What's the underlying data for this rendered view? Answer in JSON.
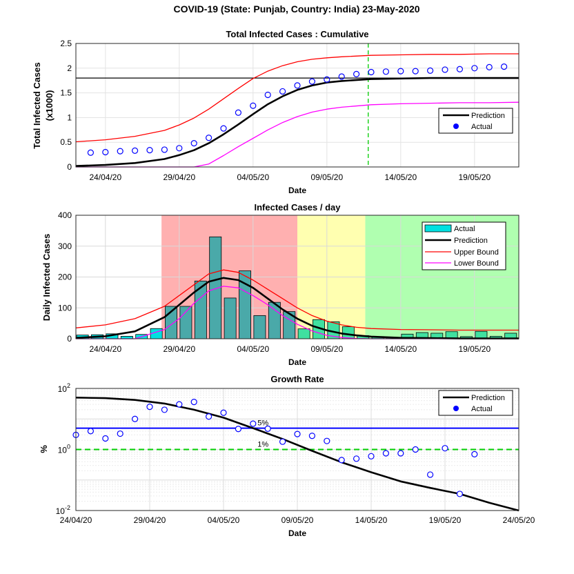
{
  "figure": {
    "title": "COVID-19 (State: Punjab, Country: India) 23-May-2020"
  },
  "colors": {
    "actual_marker": "#0000ff",
    "prediction": "#000000",
    "upper_bound": "#ff0000",
    "lower_bound": "#ff00ff",
    "cursor": "#00cc00",
    "bar": "#4aa9a9",
    "bar_green": "#40e0a0",
    "bar_cyan": "#00e0e0",
    "zone_red": "#ffb0b0",
    "zone_yellow": "#ffffb0",
    "zone_green": "#b0ffb0",
    "five_pct_line": "#0000ff",
    "one_pct_line": "#00cc00"
  },
  "chart_data": [
    {
      "type": "line",
      "title": "Total Infected Cases : Cumulative",
      "xlabel": "Date",
      "ylabel": "Total Infected Cases",
      "ylabel2": "(x1000)",
      "x_start": "2020-04-22",
      "xlim_days": [
        0,
        30
      ],
      "xticks": [
        {
          "day": 2,
          "label": "24/04/20"
        },
        {
          "day": 7,
          "label": "29/04/20"
        },
        {
          "day": 12,
          "label": "04/05/20"
        },
        {
          "day": 17,
          "label": "09/05/20"
        },
        {
          "day": 22,
          "label": "14/05/20"
        },
        {
          "day": 27,
          "label": "19/05/20"
        }
      ],
      "ylim": [
        0,
        2.5
      ],
      "yticks": [
        "0",
        "0.5",
        "1",
        "1.5",
        "2",
        "2.5"
      ],
      "grid": true,
      "final_size_line": 1.8,
      "cursor_day": 19.8,
      "legend": {
        "position": "lower-right",
        "entries": [
          "Prediction",
          "Actual"
        ]
      },
      "actual": {
        "x": [
          1,
          2,
          3,
          4,
          5,
          6,
          7,
          8,
          9,
          10,
          11,
          12,
          13,
          14,
          15,
          16,
          17,
          18,
          19,
          20,
          21,
          22,
          23,
          24,
          25,
          26,
          27,
          28,
          29
        ],
        "y": [
          0.29,
          0.3,
          0.32,
          0.33,
          0.34,
          0.35,
          0.38,
          0.48,
          0.59,
          0.78,
          1.1,
          1.24,
          1.46,
          1.53,
          1.65,
          1.73,
          1.77,
          1.83,
          1.88,
          1.92,
          1.93,
          1.94,
          1.94,
          1.95,
          1.97,
          1.98,
          2.0,
          2.02,
          2.03
        ]
      },
      "prediction": {
        "x": [
          0,
          2,
          4,
          6,
          7,
          8,
          9,
          10,
          11,
          12,
          13,
          14,
          15,
          16,
          17,
          18,
          20,
          22,
          24,
          26,
          28,
          30
        ],
        "y": [
          0.02,
          0.04,
          0.08,
          0.16,
          0.24,
          0.34,
          0.48,
          0.66,
          0.86,
          1.07,
          1.27,
          1.43,
          1.56,
          1.65,
          1.71,
          1.74,
          1.78,
          1.79,
          1.8,
          1.8,
          1.8,
          1.8
        ]
      },
      "upper_bound": {
        "x": [
          0,
          2,
          4,
          6,
          7,
          8,
          9,
          10,
          11,
          12,
          13,
          14,
          15,
          16,
          17,
          18,
          20,
          22,
          24,
          26,
          28,
          30
        ],
        "y": [
          0.51,
          0.55,
          0.62,
          0.74,
          0.85,
          0.99,
          1.17,
          1.38,
          1.59,
          1.79,
          1.94,
          2.05,
          2.13,
          2.18,
          2.21,
          2.23,
          2.26,
          2.27,
          2.28,
          2.28,
          2.29,
          2.29
        ]
      },
      "lower_bound": {
        "x": [
          0,
          5,
          8,
          9,
          10,
          11,
          12,
          13,
          14,
          15,
          16,
          17,
          18,
          20,
          22,
          24,
          26,
          28,
          30
        ],
        "y": [
          0.0,
          0.0,
          0.0,
          0.06,
          0.23,
          0.41,
          0.58,
          0.75,
          0.9,
          1.02,
          1.11,
          1.17,
          1.21,
          1.26,
          1.28,
          1.29,
          1.3,
          1.3,
          1.31
        ]
      }
    },
    {
      "type": "bar",
      "title": "Infected Cases / day",
      "xlabel": "Date",
      "ylabel": "Daily Infected Cases",
      "x_start": "2020-04-22",
      "xlim_days": [
        0,
        30
      ],
      "xticks": [
        {
          "day": 2,
          "label": "24/04/20"
        },
        {
          "day": 7,
          "label": "29/04/20"
        },
        {
          "day": 12,
          "label": "04/05/20"
        },
        {
          "day": 17,
          "label": "09/05/20"
        },
        {
          "day": 22,
          "label": "14/05/20"
        },
        {
          "day": 27,
          "label": "19/05/20"
        }
      ],
      "ylim": [
        0,
        400
      ],
      "yticks": [
        "0",
        "100",
        "200",
        "300",
        "400"
      ],
      "grid": true,
      "zones": [
        {
          "from": 5.8,
          "to": 15,
          "color": "red"
        },
        {
          "from": 15,
          "to": 19.6,
          "color": "yellow"
        },
        {
          "from": 19.6,
          "to": 30,
          "color": "green"
        }
      ],
      "legend": {
        "position": "top-right",
        "entries": [
          "Actual",
          "Prediction",
          "Upper Bound",
          "Lower Bound"
        ]
      },
      "bars": {
        "x": [
          0,
          1,
          2,
          3,
          4,
          5,
          6,
          7,
          8,
          9,
          10,
          11,
          12,
          13,
          14,
          15,
          16,
          17,
          18,
          19,
          20,
          21,
          22,
          23,
          24,
          25,
          26,
          27,
          28,
          29
        ],
        "values": [
          12,
          13,
          16,
          8,
          14,
          33,
          105,
          105,
          187,
          330,
          132,
          220,
          75,
          118,
          88,
          32,
          62,
          55,
          39,
          10,
          7,
          4,
          15,
          20,
          18,
          23,
          7,
          24,
          8,
          18
        ]
      },
      "prediction": {
        "x": [
          0,
          2,
          4,
          6,
          8,
          9,
          10,
          11,
          12,
          13,
          14,
          15,
          16,
          17,
          18,
          19,
          20,
          22,
          24,
          26,
          28,
          30
        ],
        "y": [
          3,
          8,
          24,
          70,
          150,
          185,
          197,
          190,
          165,
          130,
          95,
          65,
          42,
          27,
          17,
          11,
          7,
          3,
          2,
          1,
          1,
          1
        ]
      },
      "upper_bound": {
        "x": [
          0,
          2,
          4,
          6,
          8,
          9,
          10,
          11,
          12,
          13,
          14,
          15,
          16,
          17,
          18,
          19,
          20,
          22,
          24,
          26,
          28,
          30
        ],
        "y": [
          35,
          45,
          65,
          105,
          175,
          210,
          223,
          215,
          190,
          160,
          130,
          100,
          75,
          57,
          45,
          37,
          33,
          30,
          29,
          28,
          28,
          28
        ]
      },
      "lower_bound": {
        "x": [
          0,
          4,
          6,
          7,
          8,
          9,
          10,
          11,
          12,
          13,
          14,
          15,
          16,
          17,
          18,
          19,
          20,
          22,
          24,
          30
        ],
        "y": [
          0,
          0,
          30,
          65,
          115,
          155,
          170,
          165,
          140,
          110,
          75,
          47,
          25,
          11,
          4,
          1,
          0,
          0,
          0,
          0
        ]
      }
    },
    {
      "type": "line",
      "title": "Growth Rate",
      "xlabel": "Date",
      "ylabel": "%",
      "yscale": "log",
      "x_start": "2020-04-24",
      "xlim_days": [
        0,
        30
      ],
      "xticks": [
        {
          "day": 0,
          "label": "24/04/20"
        },
        {
          "day": 5,
          "label": "29/04/20"
        },
        {
          "day": 10,
          "label": "04/05/20"
        },
        {
          "day": 15,
          "label": "09/05/20"
        },
        {
          "day": 20,
          "label": "14/05/20"
        },
        {
          "day": 25,
          "label": "19/05/20"
        },
        {
          "day": 30,
          "label": "24/05/20"
        }
      ],
      "ylim": [
        0.01,
        100
      ],
      "yticks": [
        {
          "value": 0.01,
          "base": "10",
          "exp": "-2"
        },
        {
          "value": 1,
          "base": "10",
          "exp": "0"
        },
        {
          "value": 100,
          "base": "10",
          "exp": "2"
        }
      ],
      "grid": true,
      "reference_lines": [
        {
          "value": 5,
          "label": "5%",
          "style": "solid",
          "label_day": 12.3
        },
        {
          "value": 1,
          "label": "1%",
          "style": "dashed",
          "label_day": 12.3
        }
      ],
      "legend": {
        "position": "top-right",
        "entries": [
          "Prediction",
          "Actual"
        ]
      },
      "actual": {
        "x": [
          0,
          1,
          2,
          3,
          4,
          5,
          6,
          7,
          8,
          9,
          10,
          11,
          12,
          13,
          14,
          15,
          16,
          17,
          18,
          19,
          20,
          21,
          22,
          23,
          24,
          25,
          26,
          27
        ],
        "y": [
          3.0,
          4.0,
          2.3,
          3.3,
          10,
          25,
          20,
          30,
          36,
          12,
          16,
          4.7,
          7.0,
          4.8,
          1.8,
          3.2,
          2.8,
          1.9,
          0.45,
          0.5,
          0.6,
          0.75,
          0.75,
          1.0,
          0.15,
          1.1,
          0.035,
          0.7
        ]
      },
      "prediction": {
        "x": [
          0,
          2,
          4,
          6,
          8,
          10,
          12,
          14,
          16,
          18,
          20,
          22,
          24,
          26,
          28,
          30
        ],
        "y": [
          50,
          48,
          42,
          32,
          20,
          11,
          5,
          2.2,
          0.9,
          0.38,
          0.18,
          0.09,
          0.055,
          0.035,
          0.018,
          0.01
        ]
      }
    }
  ]
}
